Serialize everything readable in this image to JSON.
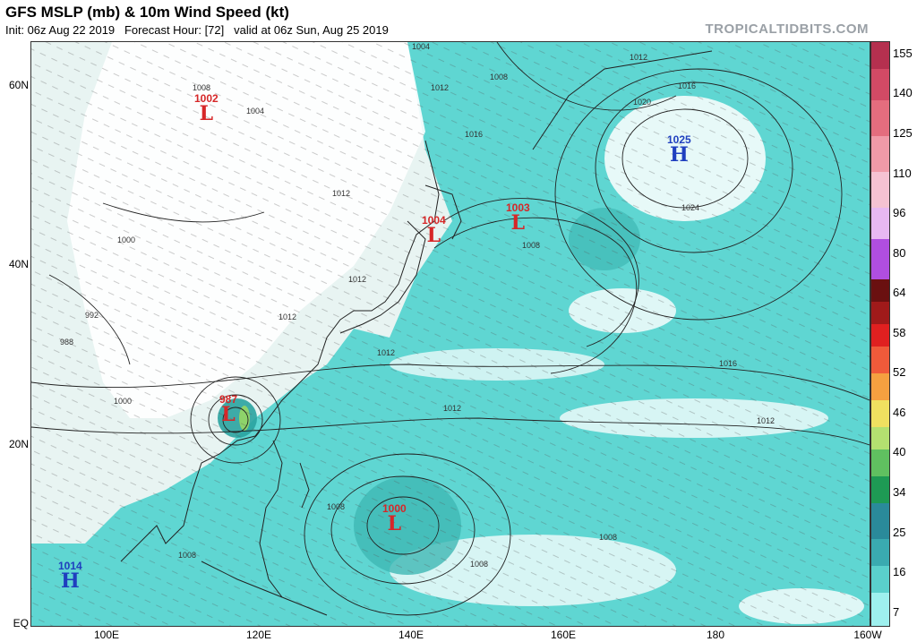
{
  "header": {
    "title": "GFS MSLP (mb) & 10m Wind Speed (kt)",
    "subtitle": "Init: 06z Aug 22 2019   Forecast Hour: [72]   valid at 06z Sun, Aug 25 2019",
    "brand": "TROPICALTIDBITS.COM"
  },
  "axes": {
    "lat_labels": [
      "60N",
      "40N",
      "20N",
      "EQ"
    ],
    "lon_labels": [
      "100E",
      "120E",
      "140E",
      "160E",
      "180",
      "160W"
    ]
  },
  "colorbar": {
    "labels": [
      "155",
      "140",
      "125",
      "110",
      "96",
      "80",
      "64",
      "58",
      "52",
      "46",
      "40",
      "34",
      "25",
      "16",
      "7"
    ]
  },
  "systems": [
    {
      "pressure": "1002",
      "symbol": "L",
      "color": "#d62728"
    },
    {
      "pressure": "1004",
      "symbol": "L",
      "color": "#d62728"
    },
    {
      "pressure": "1003",
      "symbol": "L",
      "color": "#d62728"
    },
    {
      "pressure": "1025",
      "symbol": "H",
      "color": "#1f3fbf"
    },
    {
      "pressure": "987",
      "symbol": "L",
      "color": "#d62728"
    },
    {
      "pressure": "1000",
      "symbol": "L",
      "color": "#d62728"
    },
    {
      "pressure": "1014",
      "symbol": "H",
      "color": "#1f3fbf"
    }
  ],
  "isobar_labels": [
    "1004",
    "1012",
    "1008",
    "1016",
    "1020",
    "1024",
    "1012",
    "1008",
    "1004",
    "1000",
    "992",
    "988",
    "1012",
    "1012",
    "1012",
    "1016",
    "1012",
    "1012",
    "1000",
    "1008",
    "1008",
    "1008",
    "1008",
    "1016",
    "1012",
    "1008"
  ]
}
